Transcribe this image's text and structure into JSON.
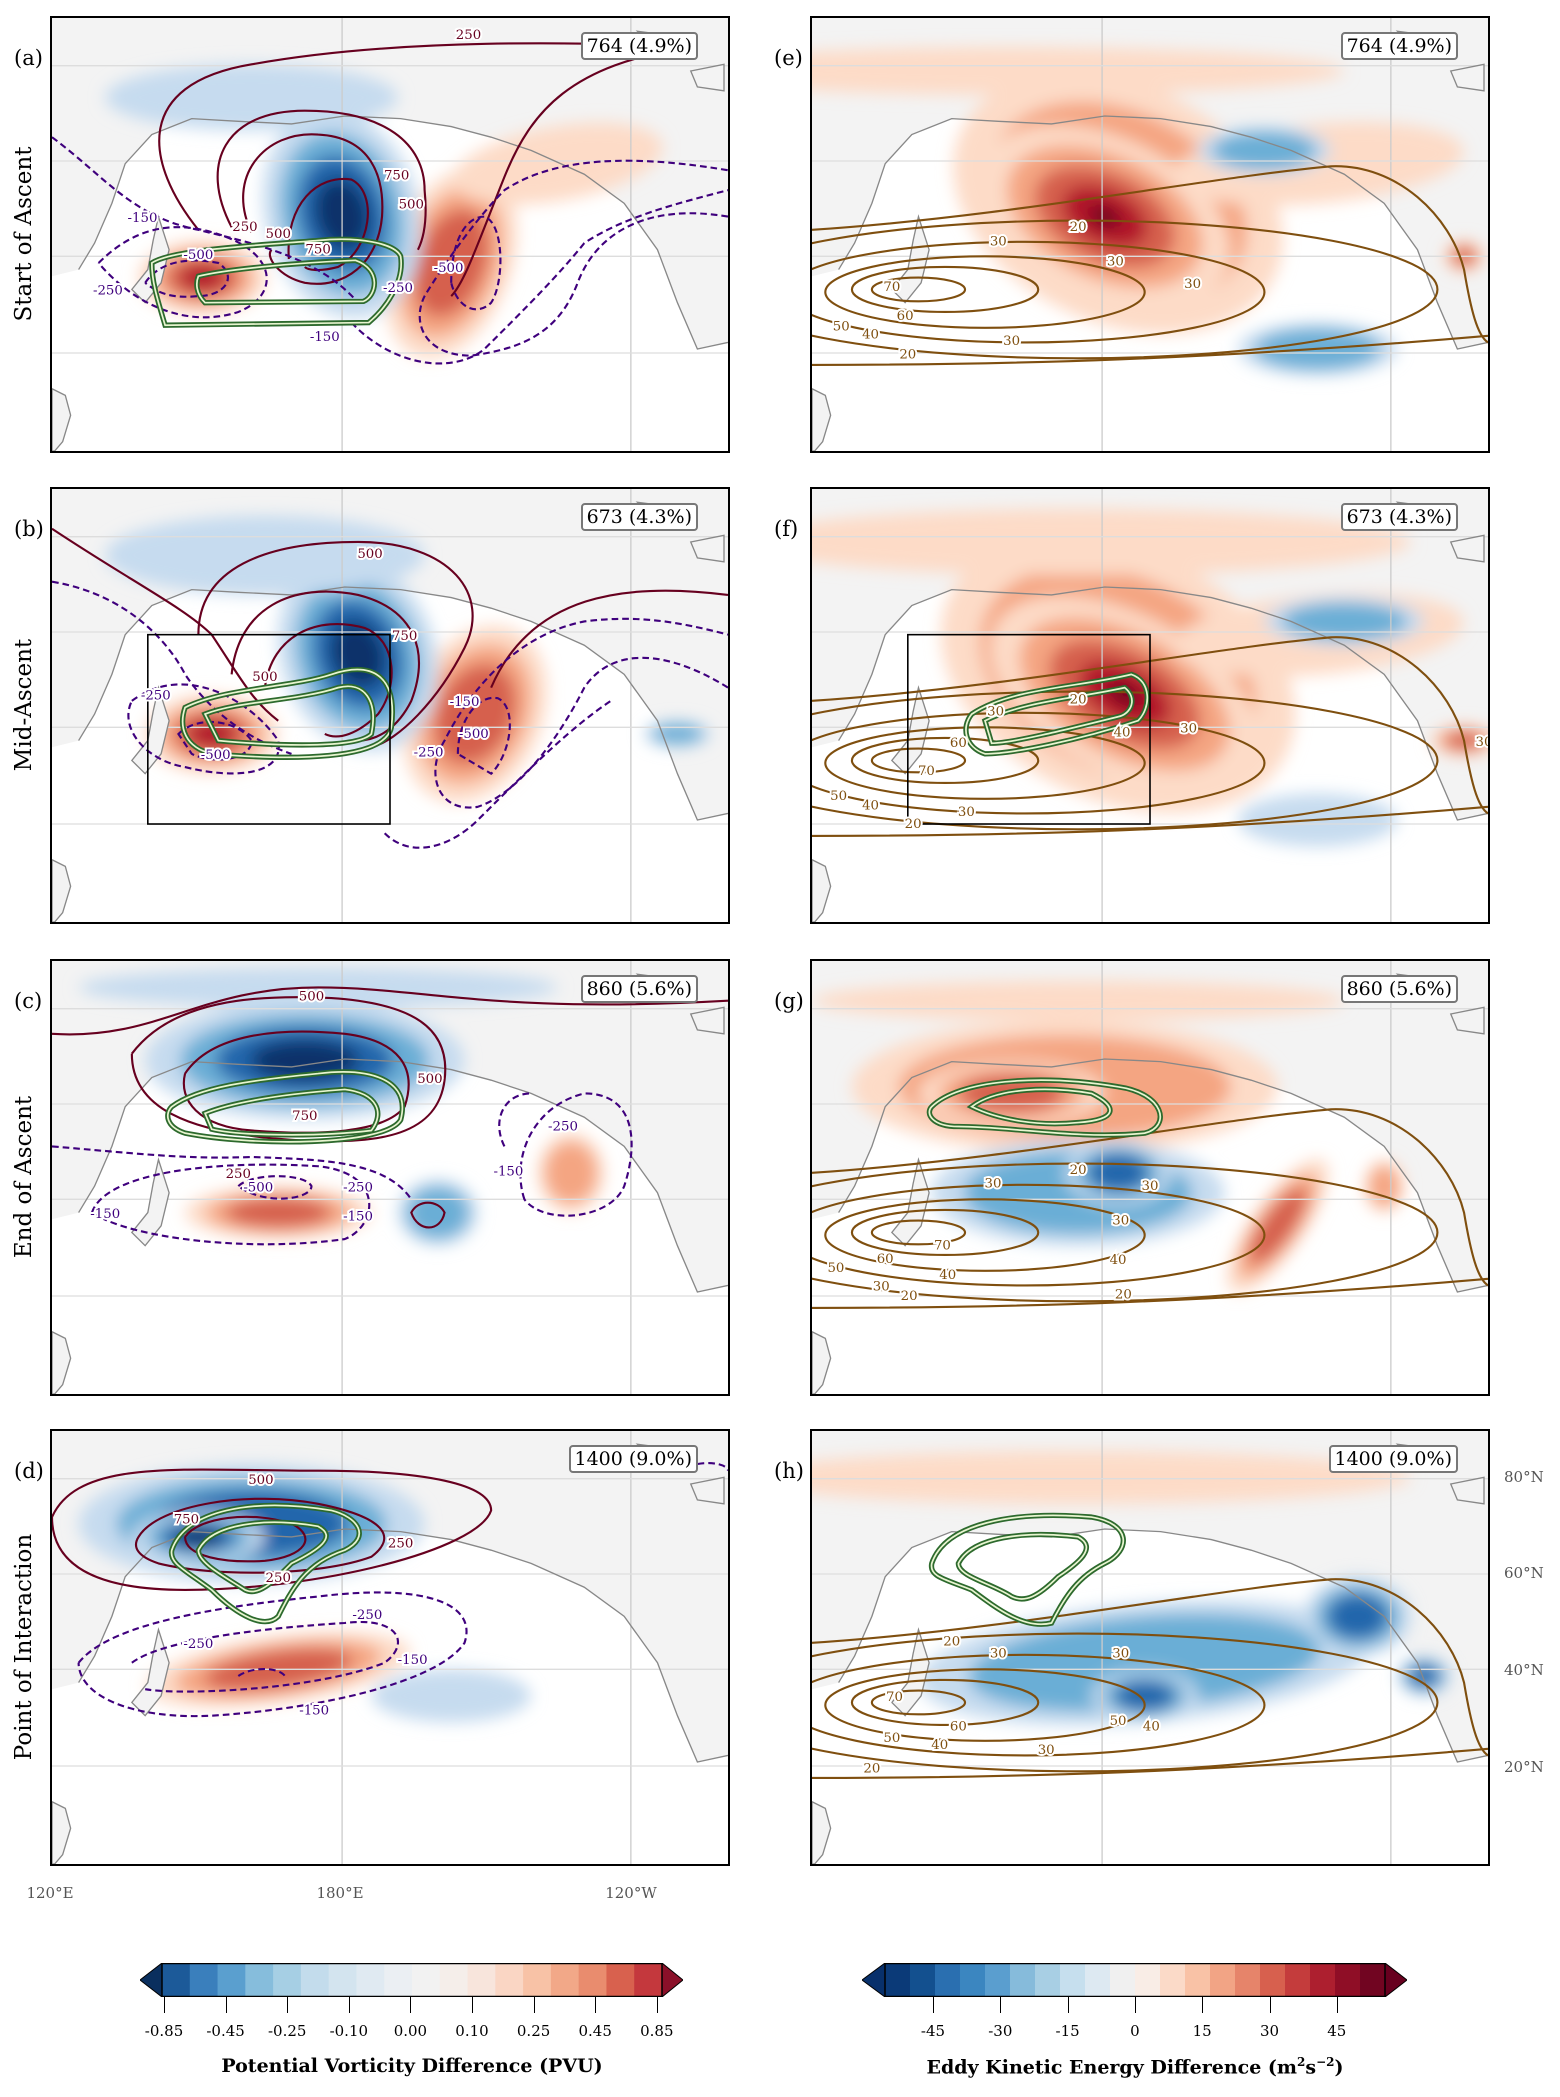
{
  "rows": [
    {
      "title": "Start of Ascent"
    },
    {
      "title": "Mid-Ascent"
    },
    {
      "title": "End of Ascent"
    },
    {
      "title": "Point of Interaction"
    }
  ],
  "panels": [
    {
      "label": "(a)",
      "count": "764 (4.9%)",
      "contour_labels": [
        "250",
        "750",
        "500",
        "250",
        "500",
        "750",
        "-150",
        "-500",
        "-250",
        "-150",
        "-250",
        "-500"
      ]
    },
    {
      "label": "(e)",
      "count": "764 (4.9%)",
      "contour_labels": [
        "20",
        "30",
        "30",
        "70",
        "60",
        "50",
        "40",
        "30",
        "20",
        "30"
      ]
    },
    {
      "label": "(b)",
      "count": "673 (4.3%)",
      "contour_labels": [
        "500",
        "750",
        "500",
        "-250",
        "-500",
        "-150",
        "-500",
        "-250"
      ]
    },
    {
      "label": "(f)",
      "count": "673 (4.3%)",
      "contour_labels": [
        "20",
        "30",
        "40",
        "60",
        "70",
        "50",
        "40",
        "30",
        "20",
        "30",
        "30"
      ]
    },
    {
      "label": "(c)",
      "count": "860 (5.6%)",
      "contour_labels": [
        "500",
        "750",
        "500",
        "250",
        "-500",
        "-250",
        "-150",
        "-150",
        "-250",
        "-150"
      ]
    },
    {
      "label": "(g)",
      "count": "860 (5.6%)",
      "contour_labels": [
        "20",
        "30",
        "30",
        "30",
        "70",
        "60",
        "50",
        "40",
        "30",
        "20",
        "40",
        "20"
      ]
    },
    {
      "label": "(d)",
      "count": "1400 (9.0%)",
      "contour_labels": [
        "500",
        "750",
        "250",
        "250",
        "-250",
        "-250",
        "-150",
        "-150"
      ]
    },
    {
      "label": "(h)",
      "count": "1400 (9.0%)",
      "contour_labels": [
        "20",
        "30",
        "30",
        "70",
        "60",
        "50",
        "40",
        "30",
        "20",
        "50",
        "40"
      ]
    }
  ],
  "lon_labels": [
    "120°E",
    "180°E",
    "120°W"
  ],
  "lat_labels": [
    "80°N",
    "60°N",
    "40°N",
    "20°N"
  ],
  "colorbars": [
    {
      "title": "Potential Vorticity Difference (PVU)",
      "ticks": [
        "-0.85",
        "-0.45",
        "-0.25",
        "-0.10",
        "0.00",
        "0.10",
        "0.25",
        "0.45",
        "0.85"
      ]
    },
    {
      "title_main": "Eddy Kinetic Energy Difference (m",
      "title_sup1": "2",
      "title_mid": "s",
      "title_sup2": "−2",
      "title_end": ")",
      "ticks": [
        "-45",
        "-30",
        "-15",
        "0",
        "15",
        "30",
        "45"
      ]
    }
  ],
  "colors": {
    "pv_contour_pos": "#67001f",
    "pv_contour_neg": "#3f007d",
    "jet_contour": "#7f4f0f",
    "green_contour": "#2d6a2d"
  }
}
